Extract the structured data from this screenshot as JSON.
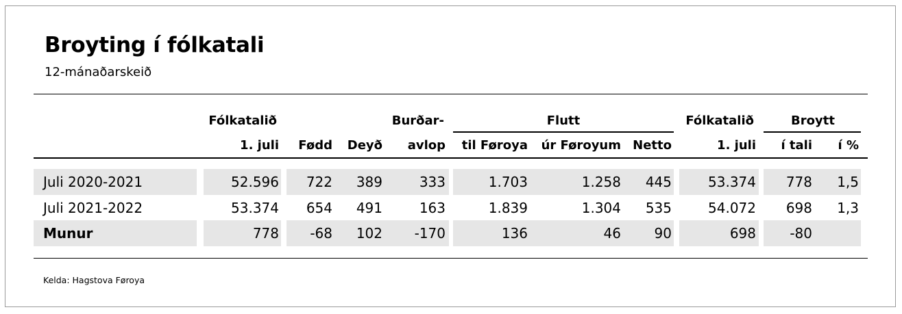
{
  "title": "Broyting í fólkatali",
  "subtitle": "12-mánaðarskeið",
  "header": {
    "top": {
      "fokatalid_start": "Fólkatalið",
      "burdar": "Burðar-",
      "flutt": "Flutt",
      "fokatalid_end": "Fólkatalið",
      "broytt": "Broytt"
    },
    "bottom": [
      "1. juli",
      "Fødd",
      "Deyð",
      "avlop",
      "til Føroya",
      "úr Føroyum",
      "Netto",
      "1. juli",
      "í tali",
      "í %"
    ]
  },
  "rows": [
    {
      "label": "Juli 2020-2021",
      "values": [
        "52.596",
        "722",
        "389",
        "333",
        "1.703",
        "1.258",
        "445",
        "53.374",
        "778",
        "1,5"
      ]
    },
    {
      "label": "Juli 2021-2022",
      "values": [
        "53.374",
        "654",
        "491",
        "163",
        "1.839",
        "1.304",
        "535",
        "54.072",
        "698",
        "1,3"
      ]
    },
    {
      "label": "Munur",
      "values": [
        "778",
        "-68",
        "102",
        "-170",
        "136",
        "46",
        "90",
        "698",
        "-80",
        ""
      ]
    }
  ],
  "source": "Kelda: Hagstova Føroya",
  "colors": {
    "shade": "#e6e6e6"
  }
}
